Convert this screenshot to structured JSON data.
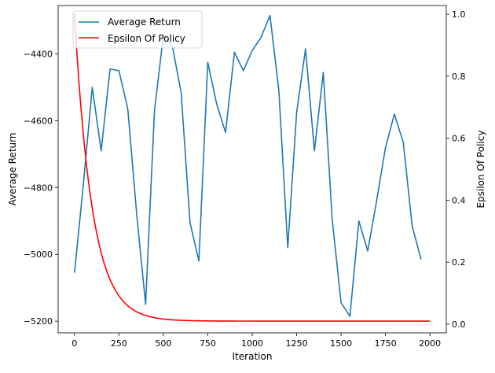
{
  "chart_data": {
    "type": "line",
    "title": "",
    "xlabel": "Iteration",
    "ylabel": "Average Return",
    "y2label": "Epsilon Of Policy",
    "xlim": [
      -92,
      2092
    ],
    "ylim": [
      -5235,
      -4255
    ],
    "y2lim": [
      -0.028,
      1.028
    ],
    "x_ticks": [
      0,
      250,
      500,
      750,
      1000,
      1250,
      1500,
      1750,
      2000
    ],
    "y_ticks": [
      -5200,
      -5000,
      -4800,
      -4600,
      -4400
    ],
    "y2_ticks": [
      0.0,
      0.2,
      0.4,
      0.6,
      0.8,
      1.0
    ],
    "x_tick_labels": [
      "0",
      "250",
      "500",
      "750",
      "1000",
      "1250",
      "1500",
      "1750",
      "2000"
    ],
    "y_tick_labels": [
      "−5200",
      "−5000",
      "−4800",
      "−4600",
      "−4400"
    ],
    "y2_tick_labels": [
      "0.0",
      "0.2",
      "0.4",
      "0.6",
      "0.8",
      "1.0"
    ],
    "grid": false,
    "legend_position": "top-left",
    "series": [
      {
        "name": "Average Return",
        "axis": "left",
        "color": "#1f77b4",
        "x": [
          0,
          50,
          100,
          150,
          200,
          250,
          300,
          350,
          400,
          450,
          500,
          550,
          600,
          650,
          700,
          750,
          800,
          850,
          900,
          950,
          1000,
          1050,
          1100,
          1150,
          1200,
          1250,
          1300,
          1350,
          1400,
          1450,
          1500,
          1550,
          1600,
          1650,
          1700,
          1750,
          1800,
          1850,
          1900,
          1950
        ],
        "y": [
          -5055,
          -4790,
          -4500,
          -4690,
          -4445,
          -4450,
          -4565,
          -4880,
          -5150,
          -4570,
          -4345,
          -4375,
          -4515,
          -4905,
          -5020,
          -4425,
          -4550,
          -4635,
          -4395,
          -4450,
          -4390,
          -4350,
          -4285,
          -4510,
          -4980,
          -4575,
          -4385,
          -4690,
          -4455,
          -4895,
          -5145,
          -5185,
          -4900,
          -4990,
          -4840,
          -4680,
          -4580,
          -4665,
          -4915,
          -5015
        ]
      },
      {
        "name": "Epsilon Of Policy",
        "axis": "right",
        "color": "#ff0000",
        "formula": "0.01 + 0.99 * exp(-x / 100)",
        "x_range": [
          0,
          2000
        ],
        "points": 400
      }
    ]
  }
}
